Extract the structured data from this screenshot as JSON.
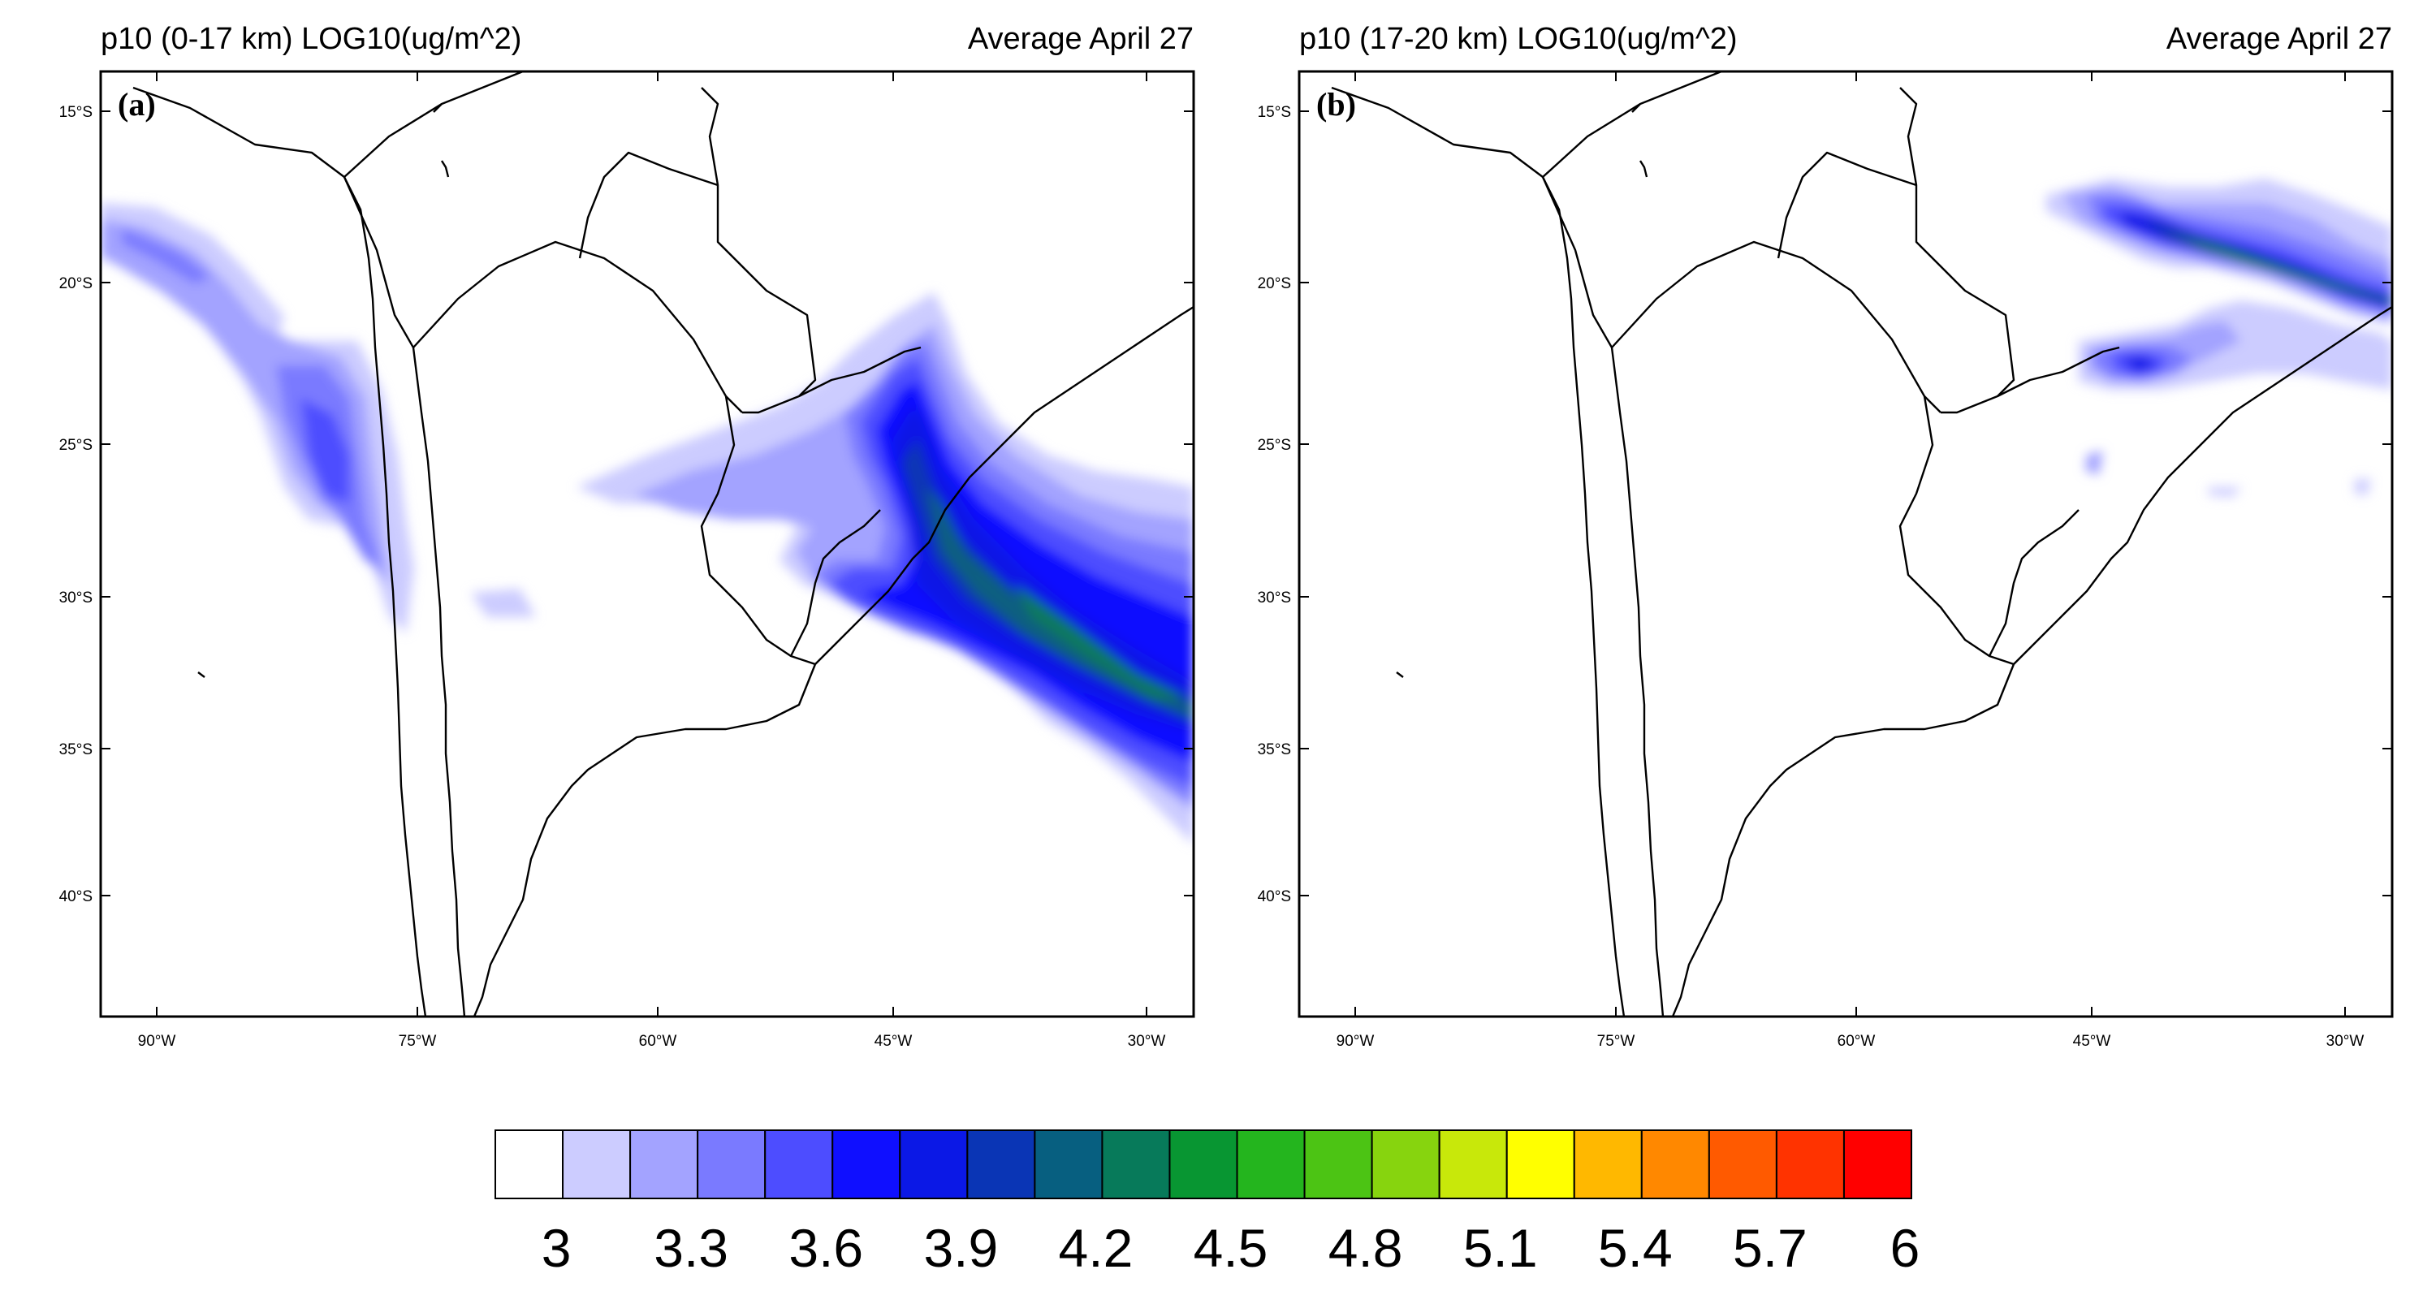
{
  "panels": [
    {
      "id": "a",
      "title": "p10 (0-17 km) LOG10(ug/m^2)",
      "right_title": "Average April 27",
      "panel_label": "(a)"
    },
    {
      "id": "b",
      "title": "p10 (17-20 km) LOG10(ug/m^2)",
      "right_title": "Average April 27",
      "panel_label": "(b)"
    }
  ],
  "lat_labels": [
    "15°S",
    "20°S",
    "25°S",
    "30°S",
    "35°S",
    "40°S"
  ],
  "lon_labels": [
    "90°W",
    "75°W",
    "60°W",
    "45°W",
    "30°W"
  ],
  "colorbar": {
    "labels": [
      "3",
      "3.3",
      "3.6",
      "3.9",
      "4.2",
      "4.5",
      "4.8",
      "5.1",
      "5.4",
      "5.7",
      "6"
    ],
    "colors": [
      "#ffffff",
      "#ccccff",
      "#a3a3ff",
      "#7a7aff",
      "#4d4dff",
      "#0f0fff",
      "#0b18e6",
      "#0a35b5",
      "#075f80",
      "#077a5a",
      "#089632",
      "#24b51e",
      "#4cc414",
      "#87d40e",
      "#c8e80a",
      "#ffff00",
      "#ffb800",
      "#ff8800",
      "#ff5a00",
      "#ff3300",
      "#ff0000"
    ]
  }
}
